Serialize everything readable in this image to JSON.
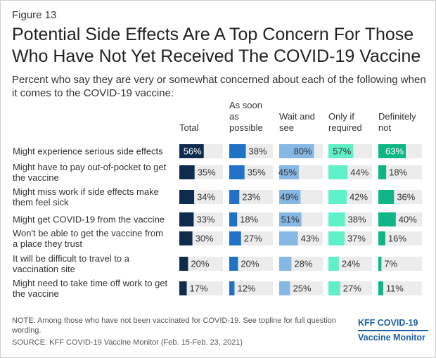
{
  "figure_label": "Figure 13",
  "title": "Potential Side Effects Are A Top Concern For Those Who Have Not Yet Received The COVID-19 Vaccine",
  "subtitle": "Percent who say they are very or somewhat concerned about each of the following when it comes to the COVID-19 vaccine:",
  "note": "NOTE: Among those who have not been vaccinated for COVID-19. See topline for full question wording.",
  "source": "SOURCE: KFF COVID-19 Vaccine Monitor (Feb. 15-Feb. 23, 2021)",
  "logo": {
    "line1": "KFF COVID-19",
    "line2": "Vaccine Monitor"
  },
  "chart_data": {
    "type": "bar",
    "orientation": "horizontal",
    "layout": "small-multiples",
    "value_max": 100,
    "value_suffix": "%",
    "categories": [
      [
        "Might experience serious side effects"
      ],
      [
        "Might have to pay out-of-pocket to get",
        "the vaccine"
      ],
      [
        "Might miss work if side effects make",
        "them feel sick"
      ],
      [
        "Might get COVID-19 from the vaccine"
      ],
      [
        "Won't be able to get the vaccine from",
        "a place they trust"
      ],
      [
        "It will be difficult to travel to a",
        "vaccination site"
      ],
      [
        "Might need to take time off work to get",
        "the vaccine"
      ]
    ],
    "series": [
      {
        "name": [
          "Total"
        ],
        "color": "#0d2c4e",
        "values": [
          56,
          35,
          34,
          33,
          30,
          20,
          17
        ]
      },
      {
        "name": [
          "As soon",
          "as",
          "possible"
        ],
        "color": "#1f72c6",
        "values": [
          38,
          35,
          23,
          18,
          27,
          20,
          12
        ]
      },
      {
        "name": [
          "Wait and",
          "see"
        ],
        "color": "#86b8e5",
        "values": [
          80,
          45,
          49,
          51,
          43,
          28,
          25
        ]
      },
      {
        "name": [
          "Only if",
          "required"
        ],
        "color": "#5ff0c7",
        "values": [
          57,
          44,
          42,
          38,
          37,
          24,
          27
        ]
      },
      {
        "name": [
          "Definitely",
          "not"
        ],
        "color": "#10b585",
        "values": [
          63,
          18,
          36,
          40,
          16,
          7,
          11
        ]
      }
    ],
    "background_track_color": "#ececec"
  }
}
